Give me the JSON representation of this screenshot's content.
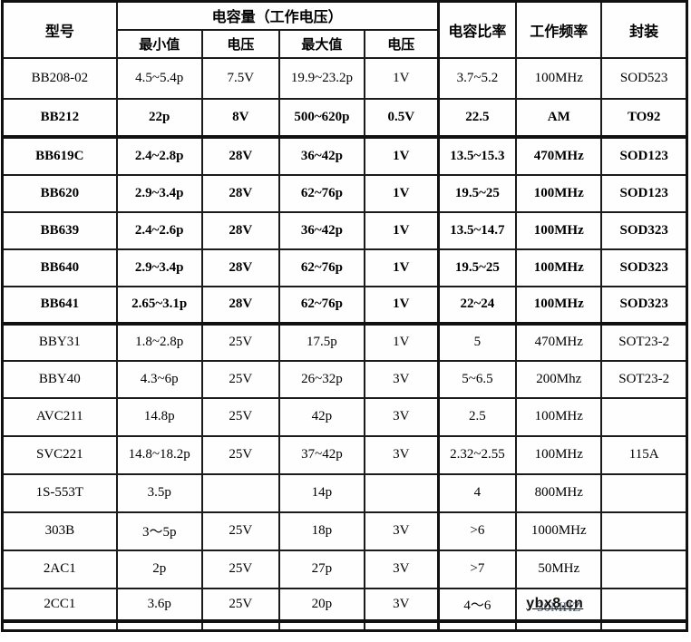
{
  "colors": {
    "border": "#1b1b1b",
    "text": "#000000",
    "faded_freq_text": "#4b5a6e"
  },
  "watermark": "ybx8.cn",
  "table": {
    "header": {
      "model": "型号",
      "cap_group": "电容量（工作电压）",
      "min": "最小值",
      "volt1": "电压",
      "max": "最大值",
      "volt2": "电压",
      "ratio": "电容比率",
      "freq": "工作频率",
      "pkg": "封装"
    },
    "rows": [
      {
        "model": "BB208-02",
        "min": "4.5~5.4p",
        "v1": "7.5V",
        "max": "19.9~23.2p",
        "v2": "1V",
        "ratio": "3.7~5.2",
        "freq": "100MHz",
        "pkg": "SOD523",
        "bold": false
      },
      {
        "model": "BB212",
        "min": "22p",
        "v1": "8V",
        "max": "500~620p",
        "v2": "0.5V",
        "ratio": "22.5",
        "freq": "AM",
        "pkg": "TO92",
        "bold": true,
        "thick_bottom": true
      },
      {
        "model": "BB619C",
        "min": "2.4~2.8p",
        "v1": "28V",
        "max": "36~42p",
        "v2": "1V",
        "ratio": "13.5~15.3",
        "freq": "470MHz",
        "pkg": "SOD123",
        "bold": true
      },
      {
        "model": "BB620",
        "min": "2.9~3.4p",
        "v1": "28V",
        "max": "62~76p",
        "v2": "1V",
        "ratio": "19.5~25",
        "freq": "100MHz",
        "pkg": "SOD123",
        "bold": true
      },
      {
        "model": "BB639",
        "min": "2.4~2.6p",
        "v1": "28V",
        "max": "36~42p",
        "v2": "1V",
        "ratio": "13.5~14.7",
        "freq": "100MHz",
        "pkg": "SOD323",
        "bold": true
      },
      {
        "model": "BB640",
        "min": "2.9~3.4p",
        "v1": "28V",
        "max": "62~76p",
        "v2": "1V",
        "ratio": "19.5~25",
        "freq": "100MHz",
        "pkg": "SOD323",
        "bold": true
      },
      {
        "model": "BB641",
        "min": "2.65~3.1p",
        "v1": "28V",
        "max": "62~76p",
        "v2": "1V",
        "ratio": "22~24",
        "freq": "100MHz",
        "pkg": "SOD323",
        "bold": true,
        "thick_bottom": true
      },
      {
        "model": "BBY31",
        "min": "1.8~2.8p",
        "v1": "25V",
        "max": "17.5p",
        "v2": "1V",
        "ratio": "5",
        "freq": "470MHz",
        "pkg": "SOT23-2",
        "bold": false
      },
      {
        "model": "BBY40",
        "min": "4.3~6p",
        "v1": "25V",
        "max": "26~32p",
        "v2": "3V",
        "ratio": "5~6.5",
        "freq": "200Mhz",
        "pkg": "SOT23-2",
        "bold": false
      },
      {
        "model": "AVC211",
        "min": "14.8p",
        "v1": "25V",
        "max": "42p",
        "v2": "3V",
        "ratio": "2.5",
        "freq": "100MHz",
        "pkg": "",
        "bold": false
      },
      {
        "model": "SVC221",
        "min": "14.8~18.2p",
        "v1": "25V",
        "max": "37~42p",
        "v2": "3V",
        "ratio": "2.32~2.55",
        "freq": "100MHz",
        "pkg": "115A",
        "bold": false
      },
      {
        "model": "1S-553T",
        "min": "3.5p",
        "v1": "",
        "max": "14p",
        "v2": "",
        "ratio": "4",
        "freq": "800MHz",
        "pkg": "",
        "bold": false
      },
      {
        "model": "303B",
        "min": "3～5p",
        "v1": "25V",
        "max": "18p",
        "v2": "3V",
        "ratio": ">6",
        "freq": "1000MHz",
        "pkg": "",
        "bold": false
      },
      {
        "model": "2AC1",
        "min": "2p",
        "v1": "25V",
        "max": "27p",
        "v2": "3V",
        "ratio": ">7",
        "freq": "50MHz",
        "pkg": "",
        "bold": false
      },
      {
        "model": "2CC1",
        "min": "3.6p",
        "v1": "25V",
        "max": "20p",
        "v2": "3V",
        "ratio": "4～6",
        "freq": "30MHZ",
        "pkg": "",
        "bold": false,
        "thick_bottom": true,
        "watermark": true
      }
    ]
  }
}
